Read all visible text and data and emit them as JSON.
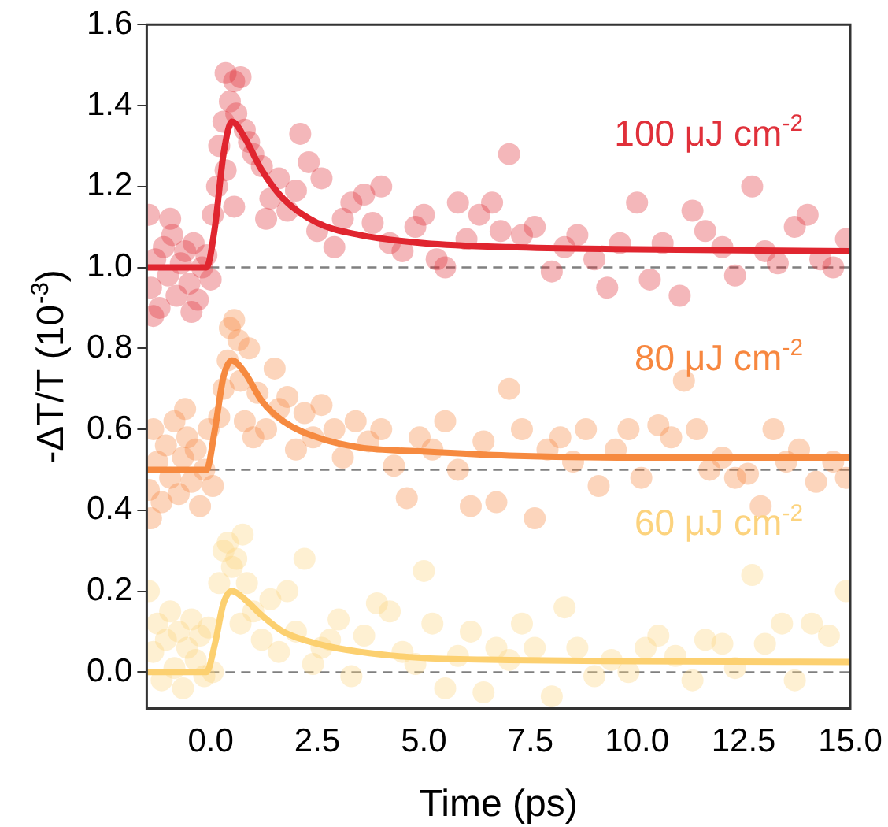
{
  "chart_data": {
    "type": "scatter",
    "xlabel": "Time (ps)",
    "ylabel": "-ΔT/T (10$^{-3}$)",
    "xlim": [
      -1.5,
      15
    ],
    "xticks": [
      {
        "value": 0,
        "label": "0.0"
      },
      2.5,
      {
        "value": 5,
        "label": "5.0"
      },
      {
        "value": 7.5,
        "label": "7.5"
      },
      {
        "value": 10,
        "label": "10.0"
      },
      12.5,
      {
        "value": 15,
        "label": "15.0"
      }
    ],
    "ylim": [
      -0.09,
      1.6
    ],
    "yticks": [
      {
        "value": 0,
        "label": "0.0"
      },
      0.2,
      0.4,
      0.6,
      0.8,
      {
        "value": 1,
        "label": "1.0"
      },
      1.2,
      1.4,
      1.6
    ],
    "grid": false,
    "legend": false,
    "ref_lines": [
      {
        "axis": "y",
        "value": 1,
        "color": "#808080",
        "line_style": "dashed"
      },
      {
        "axis": "y",
        "value": 0.5,
        "color": "#808080",
        "line_style": "dashed"
      },
      {
        "axis": "y",
        "value": 0,
        "color": "#808080",
        "line_style": "dashed"
      }
    ],
    "series": [
      {
        "marker": "circle",
        "name": "100 μJ cm$^{-2}$",
        "color": "#e0303a",
        "x": [
          -1.45,
          -1.4,
          -1.3,
          -1.2,
          -1.1,
          -1.0,
          -0.9,
          -0.8,
          -0.7,
          -0.6,
          -0.5,
          -0.4,
          -0.3,
          -0.2,
          -0.1,
          0.0,
          -1.35,
          -0.95,
          -0.45,
          0.05,
          0.15,
          0.2,
          0.3,
          0.35,
          0.45,
          0.55,
          0.6,
          0.7,
          0.8,
          0.9,
          0.35,
          0.55,
          1.0,
          1.2,
          1.4,
          1.3,
          1.6,
          1.8,
          2.0,
          2.1,
          2.3,
          2.5,
          2.6,
          2.9,
          3.1,
          3.3,
          3.6,
          3.8,
          4.0,
          4.2,
          4.5,
          4.8,
          5.0,
          5.3,
          5.5,
          5.8,
          6.0,
          6.3,
          6.6,
          6.8,
          7.0,
          7.3,
          7.6,
          8.0,
          8.3,
          8.6,
          9.0,
          9.3,
          9.6,
          10.0,
          10.3,
          10.6,
          11.0,
          11.3,
          11.6,
          12.0,
          12.3,
          12.7,
          13.0,
          13.3,
          13.7,
          14.0,
          14.3,
          14.6,
          14.9
        ],
        "values": [
          1.13,
          0.95,
          1.02,
          0.9,
          1.05,
          0.98,
          1.08,
          0.93,
          1.01,
          1.04,
          0.96,
          1.06,
          0.92,
          1.0,
          1.03,
          0.97,
          0.88,
          1.12,
          0.89,
          1.13,
          1.2,
          1.3,
          1.36,
          1.48,
          1.41,
          1.46,
          1.38,
          1.47,
          1.34,
          1.31,
          1.24,
          1.15,
          1.28,
          1.25,
          1.17,
          1.12,
          1.22,
          1.14,
          1.19,
          1.33,
          1.26,
          1.09,
          1.22,
          1.05,
          1.12,
          1.16,
          1.18,
          1.11,
          1.2,
          1.06,
          1.04,
          1.1,
          1.13,
          1.02,
          1.0,
          1.16,
          1.07,
          1.13,
          1.16,
          1.09,
          1.28,
          1.08,
          1.1,
          0.99,
          1.05,
          1.08,
          1.02,
          0.95,
          1.06,
          1.16,
          0.97,
          1.06,
          0.93,
          1.14,
          1.09,
          1.05,
          0.98,
          1.2,
          1.04,
          1.01,
          1.1,
          1.13,
          1.02,
          1.0,
          1.07
        ]
      },
      {
        "type": "line",
        "marker": "none",
        "color": "#e0252f",
        "x": [
          -1.5,
          -0.5,
          -0.1,
          0.1,
          0.3,
          0.5,
          0.8,
          1.2,
          1.7,
          2.5,
          3.5,
          5,
          7,
          10,
          15
        ],
        "values": [
          1.0,
          1.0,
          1.0,
          1.1,
          1.28,
          1.36,
          1.32,
          1.24,
          1.17,
          1.11,
          1.08,
          1.06,
          1.05,
          1.045,
          1.04
        ]
      },
      {
        "marker": "circle",
        "name": "80 μJ cm$^{-2}$",
        "color": "#f7873f",
        "x": [
          -1.45,
          -1.35,
          -1.25,
          -1.15,
          -1.05,
          -0.95,
          -0.85,
          -0.75,
          -0.65,
          -0.55,
          -0.45,
          -0.35,
          -0.25,
          -0.15,
          -0.05,
          0.05,
          -1.4,
          -0.6,
          0.2,
          0.3,
          0.4,
          0.45,
          0.55,
          0.65,
          0.7,
          0.9,
          1.1,
          0.8,
          1.0,
          1.3,
          1.5,
          1.6,
          1.8,
          2.0,
          2.2,
          2.4,
          2.6,
          2.9,
          3.1,
          3.4,
          3.7,
          4.0,
          4.3,
          4.6,
          4.9,
          5.2,
          5.5,
          5.8,
          6.1,
          6.4,
          6.7,
          7.0,
          7.3,
          7.6,
          7.9,
          8.2,
          8.5,
          8.8,
          9.1,
          9.5,
          9.8,
          10.1,
          10.5,
          10.8,
          11.1,
          11.4,
          11.7,
          12.0,
          12.3,
          12.6,
          12.9,
          13.2,
          13.5,
          13.8,
          14.2,
          14.6,
          14.9
        ],
        "values": [
          0.45,
          0.6,
          0.52,
          0.42,
          0.56,
          0.48,
          0.62,
          0.44,
          0.53,
          0.58,
          0.47,
          0.55,
          0.41,
          0.5,
          0.6,
          0.46,
          0.38,
          0.65,
          0.63,
          0.7,
          0.77,
          0.85,
          0.87,
          0.82,
          0.72,
          0.8,
          0.69,
          0.62,
          0.58,
          0.6,
          0.75,
          0.65,
          0.68,
          0.55,
          0.64,
          0.58,
          0.66,
          0.6,
          0.53,
          0.62,
          0.57,
          0.6,
          0.51,
          0.43,
          0.58,
          0.55,
          0.62,
          0.5,
          0.41,
          0.57,
          0.42,
          0.7,
          0.6,
          0.38,
          0.55,
          0.58,
          0.52,
          0.6,
          0.46,
          0.55,
          0.6,
          0.48,
          0.61,
          0.58,
          0.72,
          0.6,
          0.5,
          0.53,
          0.48,
          0.49,
          0.41,
          0.6,
          0.52,
          0.55,
          0.47,
          0.52,
          0.48
        ]
      },
      {
        "type": "line",
        "marker": "none",
        "color": "#f68a40",
        "x": [
          -1.5,
          -0.5,
          -0.1,
          0.1,
          0.3,
          0.5,
          0.8,
          1.2,
          1.7,
          2.5,
          3.5,
          5,
          7,
          10,
          15
        ],
        "values": [
          0.5,
          0.5,
          0.5,
          0.6,
          0.73,
          0.77,
          0.74,
          0.67,
          0.62,
          0.58,
          0.555,
          0.545,
          0.535,
          0.53,
          0.53
        ]
      },
      {
        "marker": "circle",
        "name": "60 μJ cm$^{-2}$",
        "color": "#fcd37e",
        "x": [
          -1.45,
          -1.35,
          -1.25,
          -1.15,
          -1.05,
          -0.95,
          -0.85,
          -0.75,
          -0.65,
          -0.55,
          -0.45,
          -0.35,
          -0.25,
          -0.15,
          -0.05,
          0.05,
          0.2,
          0.3,
          0.4,
          0.5,
          0.6,
          0.75,
          0.85,
          0.7,
          1.0,
          1.2,
          1.4,
          1.6,
          1.8,
          2.0,
          2.2,
          2.4,
          2.6,
          2.8,
          3.0,
          3.3,
          3.6,
          3.9,
          4.2,
          4.5,
          4.8,
          5.0,
          5.2,
          5.5,
          5.8,
          6.1,
          6.4,
          6.7,
          7.0,
          7.3,
          7.6,
          8.0,
          8.3,
          8.6,
          9.0,
          9.4,
          9.8,
          10.2,
          10.5,
          10.9,
          11.3,
          11.6,
          12.0,
          12.3,
          12.7,
          13.0,
          13.4,
          13.7,
          14.1,
          14.5,
          14.9
        ],
        "values": [
          0.2,
          0.05,
          0.12,
          -0.02,
          0.08,
          0.15,
          0.01,
          0.1,
          -0.04,
          0.06,
          0.13,
          0.03,
          0.09,
          -0.01,
          0.11,
          0.0,
          0.22,
          0.3,
          0.32,
          0.26,
          0.28,
          0.34,
          0.22,
          0.12,
          0.15,
          0.08,
          0.18,
          0.05,
          0.2,
          0.1,
          0.28,
          0.02,
          0.06,
          0.08,
          0.13,
          -0.01,
          0.09,
          0.17,
          0.15,
          0.05,
          0.02,
          0.25,
          0.12,
          -0.04,
          0.04,
          0.1,
          -0.05,
          0.06,
          0.03,
          0.12,
          0.06,
          -0.06,
          0.16,
          0.06,
          -0.01,
          0.03,
          0.0,
          0.06,
          0.09,
          0.04,
          -0.02,
          0.08,
          0.07,
          0.01,
          0.24,
          0.07,
          0.12,
          -0.02,
          0.12,
          0.09,
          0.2
        ]
      },
      {
        "type": "line",
        "marker": "none",
        "color": "#fcd070",
        "x": [
          -1.5,
          -0.5,
          -0.1,
          0.1,
          0.3,
          0.5,
          0.8,
          1.2,
          1.7,
          2.5,
          3.5,
          5,
          7,
          10,
          15
        ],
        "values": [
          0,
          0,
          0,
          0.07,
          0.17,
          0.2,
          0.18,
          0.14,
          0.1,
          0.07,
          0.05,
          0.035,
          0.03,
          0.027,
          0.025
        ]
      }
    ]
  }
}
